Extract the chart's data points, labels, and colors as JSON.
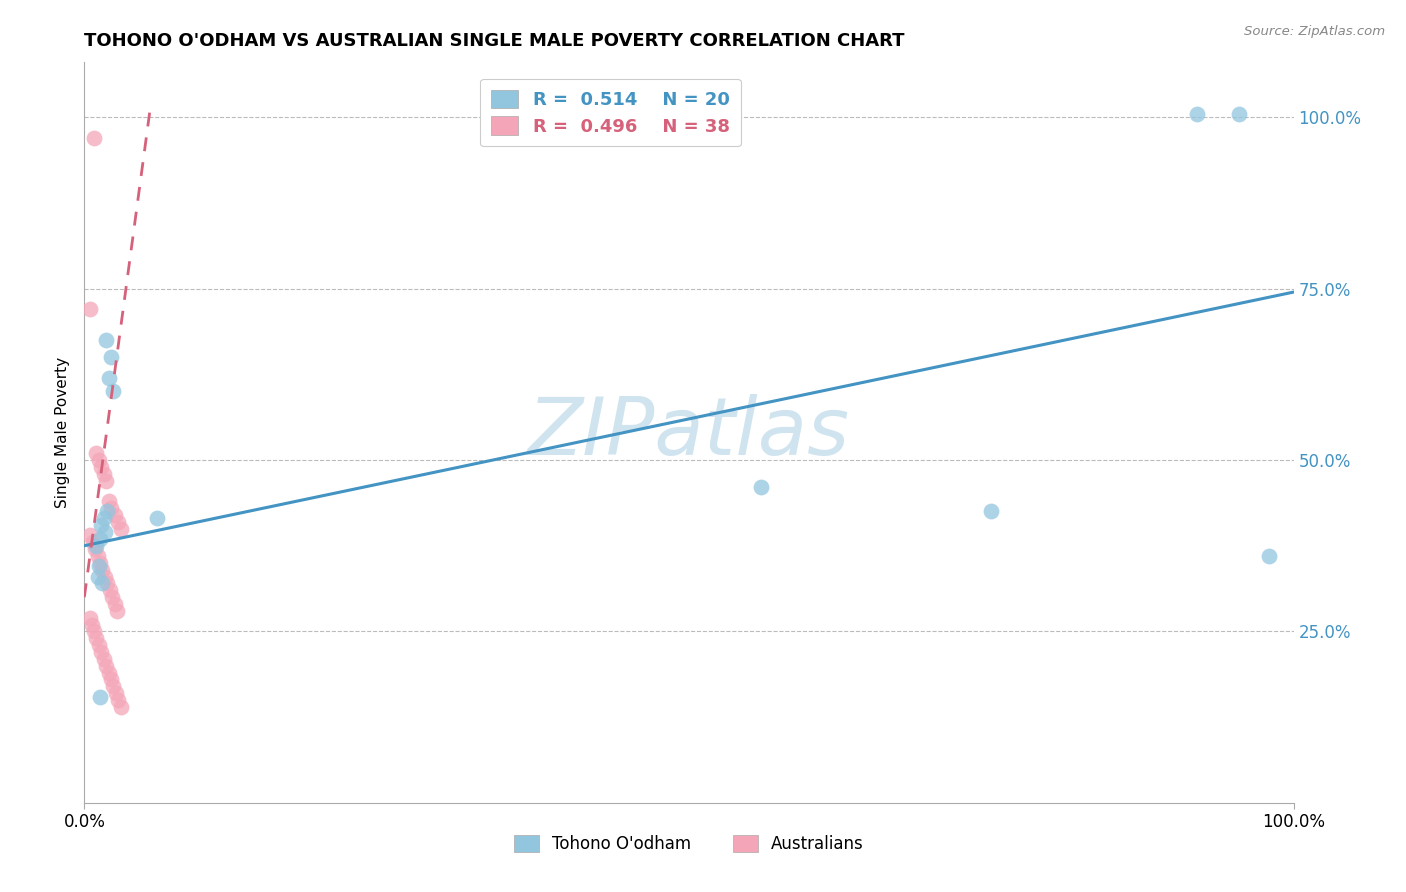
{
  "title": "TOHONO O'ODHAM VS AUSTRALIAN SINGLE MALE POVERTY CORRELATION CHART",
  "source": "Source: ZipAtlas.com",
  "ylabel": "Single Male Poverty",
  "ytick_labels": [
    "100.0%",
    "75.0%",
    "50.0%",
    "25.0%"
  ],
  "ytick_vals": [
    1.0,
    0.75,
    0.5,
    0.25
  ],
  "blue_color": "#92c5de",
  "pink_color": "#f4a6b8",
  "blue_line_color": "#4393c3",
  "pink_line_color": "#d6617b",
  "grid_color": "#bbbbbb",
  "watermark_color": "#d0e4f0",
  "blue_scatter_x": [
    0.018,
    0.022,
    0.02,
    0.024,
    0.019,
    0.016,
    0.014,
    0.017,
    0.013,
    0.01,
    0.012,
    0.011,
    0.015,
    0.013,
    0.06,
    0.56,
    0.75,
    0.92,
    0.955,
    0.98
  ],
  "blue_scatter_y": [
    0.675,
    0.65,
    0.62,
    0.6,
    0.425,
    0.415,
    0.405,
    0.395,
    0.385,
    0.375,
    0.345,
    0.33,
    0.32,
    0.155,
    0.415,
    0.46,
    0.425,
    1.005,
    1.005,
    0.36
  ],
  "pink_scatter_x": [
    0.008,
    0.005,
    0.01,
    0.012,
    0.014,
    0.016,
    0.018,
    0.02,
    0.022,
    0.025,
    0.028,
    0.03,
    0.005,
    0.007,
    0.009,
    0.011,
    0.013,
    0.015,
    0.017,
    0.019,
    0.021,
    0.023,
    0.025,
    0.027,
    0.005,
    0.006,
    0.008,
    0.01,
    0.012,
    0.014,
    0.016,
    0.018,
    0.02,
    0.022,
    0.024,
    0.026,
    0.028,
    0.03
  ],
  "pink_scatter_y": [
    0.97,
    0.72,
    0.51,
    0.5,
    0.49,
    0.48,
    0.47,
    0.44,
    0.43,
    0.42,
    0.41,
    0.4,
    0.39,
    0.38,
    0.37,
    0.36,
    0.35,
    0.34,
    0.33,
    0.32,
    0.31,
    0.3,
    0.29,
    0.28,
    0.27,
    0.26,
    0.25,
    0.24,
    0.23,
    0.22,
    0.21,
    0.2,
    0.19,
    0.18,
    0.17,
    0.16,
    0.15,
    0.14
  ],
  "blue_line_x": [
    0.0,
    1.0
  ],
  "blue_line_y": [
    0.375,
    0.745
  ],
  "pink_line_x": [
    0.0,
    0.055
  ],
  "pink_line_y": [
    0.3,
    1.02
  ],
  "xlim": [
    0.0,
    1.0
  ],
  "ylim": [
    0.0,
    1.08
  ],
  "figsize": [
    14.06,
    8.92
  ],
  "dpi": 100
}
